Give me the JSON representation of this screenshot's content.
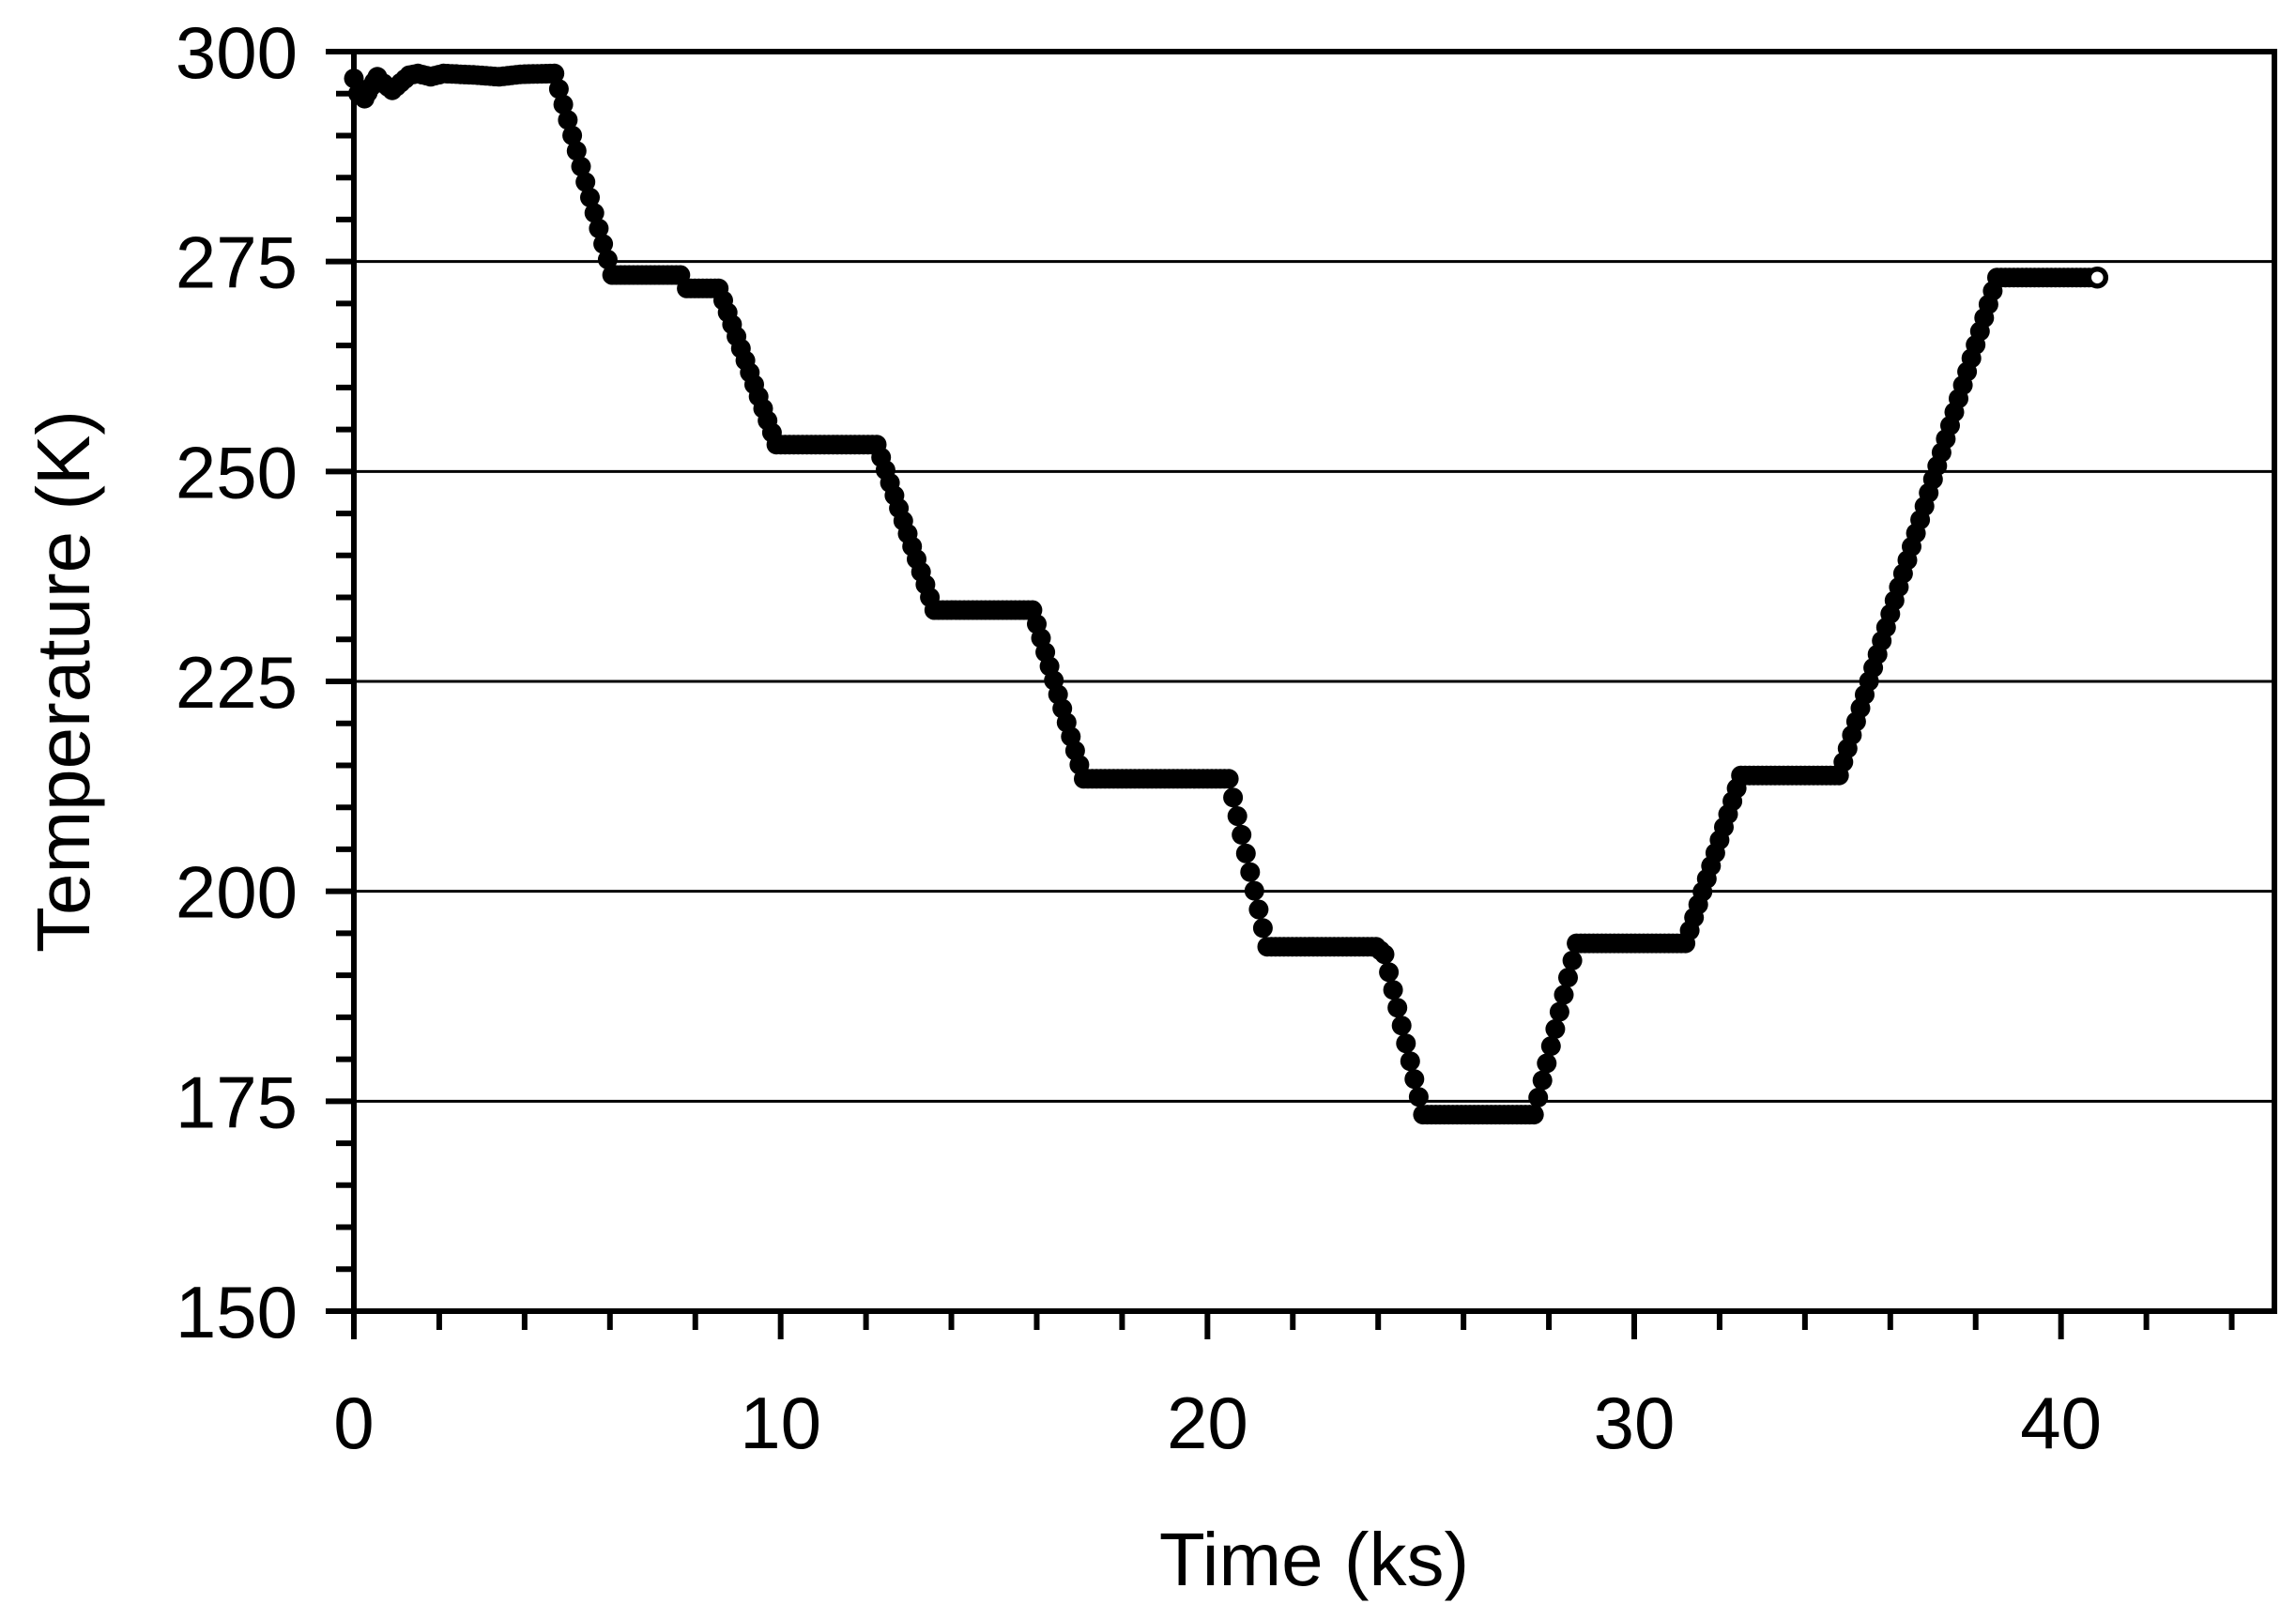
{
  "figure": {
    "background_color": "#ffffff",
    "foreground_color": "#000000"
  },
  "chart_data": {
    "type": "line",
    "title": "",
    "xlabel": "Time (ks)",
    "ylabel": "Temperature (K)",
    "xlim": [
      0,
      45
    ],
    "ylim": [
      150,
      300
    ],
    "x_major_ticks": [
      0,
      10,
      20,
      30,
      40
    ],
    "x_minor_tick_step": 2,
    "y_major_ticks": [
      150,
      175,
      200,
      225,
      250,
      275,
      300
    ],
    "y_minor_tick_step": 5,
    "grid": "horizontal gridlines at y major ticks only",
    "legend": "none",
    "frame": "full box",
    "marker_style": "dense overlapping filled circles forming a thick stepped line; final data point drawn as open circle",
    "sample_interval_ks": 0.1,
    "series": [
      {
        "name": "Temperature",
        "color": "#000000",
        "segments": [
          [
            0.0,
            296.8
          ],
          [
            0.1,
            295.0
          ],
          [
            0.25,
            294.4
          ],
          [
            0.4,
            295.8
          ],
          [
            0.55,
            297.0
          ],
          [
            0.7,
            296.2
          ],
          [
            0.9,
            295.4
          ],
          [
            1.1,
            296.3
          ],
          [
            1.3,
            297.2
          ],
          [
            1.5,
            297.4
          ],
          [
            1.8,
            297.0
          ],
          [
            2.1,
            297.4
          ],
          [
            2.9,
            297.2
          ],
          [
            3.4,
            297.0
          ],
          [
            3.9,
            297.3
          ],
          [
            4.7,
            297.4
          ],
          [
            6.05,
            273.4
          ],
          [
            7.65,
            273.4
          ],
          [
            7.8,
            271.8
          ],
          [
            8.55,
            271.8
          ],
          [
            9.9,
            253.2
          ],
          [
            12.25,
            253.2
          ],
          [
            13.6,
            233.5
          ],
          [
            15.9,
            233.5
          ],
          [
            17.1,
            213.4
          ],
          [
            20.5,
            213.4
          ],
          [
            21.4,
            193.4
          ],
          [
            23.95,
            193.4
          ],
          [
            24.15,
            192.5
          ],
          [
            25.05,
            173.4
          ],
          [
            27.65,
            173.4
          ],
          [
            28.65,
            193.8
          ],
          [
            31.2,
            193.8
          ],
          [
            32.5,
            213.8
          ],
          [
            34.8,
            213.8
          ],
          [
            38.5,
            273.1
          ],
          [
            40.85,
            273.1
          ]
        ],
        "end_point_open_circle": [
          40.85,
          273.1
        ]
      }
    ]
  }
}
